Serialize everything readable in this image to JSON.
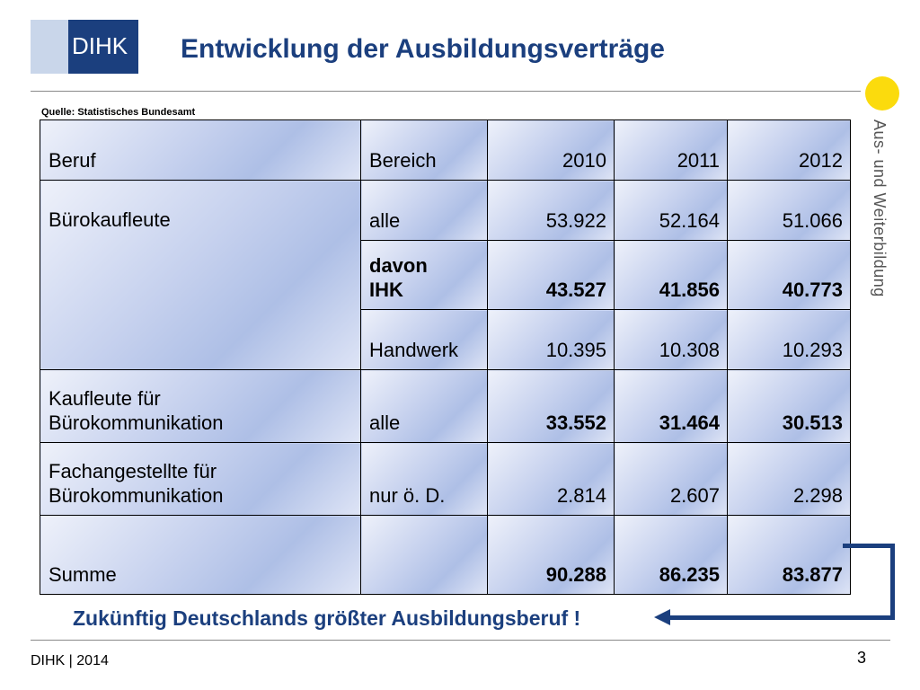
{
  "logo": {
    "text": "DIHK"
  },
  "title": "Entwicklung der Ausbildungsverträge",
  "side_label": "Aus- und Weiterbildung",
  "source": "Quelle: Statistisches Bundesamt",
  "table": {
    "header": {
      "beruf": "Beruf",
      "bereich": "Bereich",
      "y2010": "2010",
      "y2011": "2011",
      "y2012": "2012"
    },
    "rows": [
      {
        "beruf": "Bürokaufleute",
        "bereich": "alle",
        "y2010": "53.922",
        "y2011": "52.164",
        "y2012": "51.066"
      },
      {
        "bereich_line1": "davon",
        "bereich_line2": "IHK",
        "y2010": "43.527",
        "y2011": "41.856",
        "y2012": "40.773"
      },
      {
        "bereich": "Handwerk",
        "y2010": "10.395",
        "y2011": "10.308",
        "y2012": "10.293"
      },
      {
        "beruf_line1": "Kaufleute für",
        "beruf_line2": "Bürokommunikation",
        "bereich": "alle",
        "y2010": "33.552",
        "y2011": "31.464",
        "y2012": "30.513"
      },
      {
        "beruf_line1": "Fachangestellte für",
        "beruf_line2": "Bürokommunikation",
        "bereich": "nur ö. D.",
        "y2010": "2.814",
        "y2011": "2.607",
        "y2012": "2.298"
      },
      {
        "beruf": "Summe",
        "bereich": "",
        "y2010": "90.288",
        "y2011": "86.235",
        "y2012": "83.877"
      }
    ]
  },
  "callout": "Zukünftig Deutschlands größter Ausbildungsberuf !",
  "footer": {
    "left": "DIHK | 2014",
    "page": "3"
  },
  "colors": {
    "brand_blue": "#1b3f7e",
    "accent_yellow": "#fbdb0d"
  }
}
